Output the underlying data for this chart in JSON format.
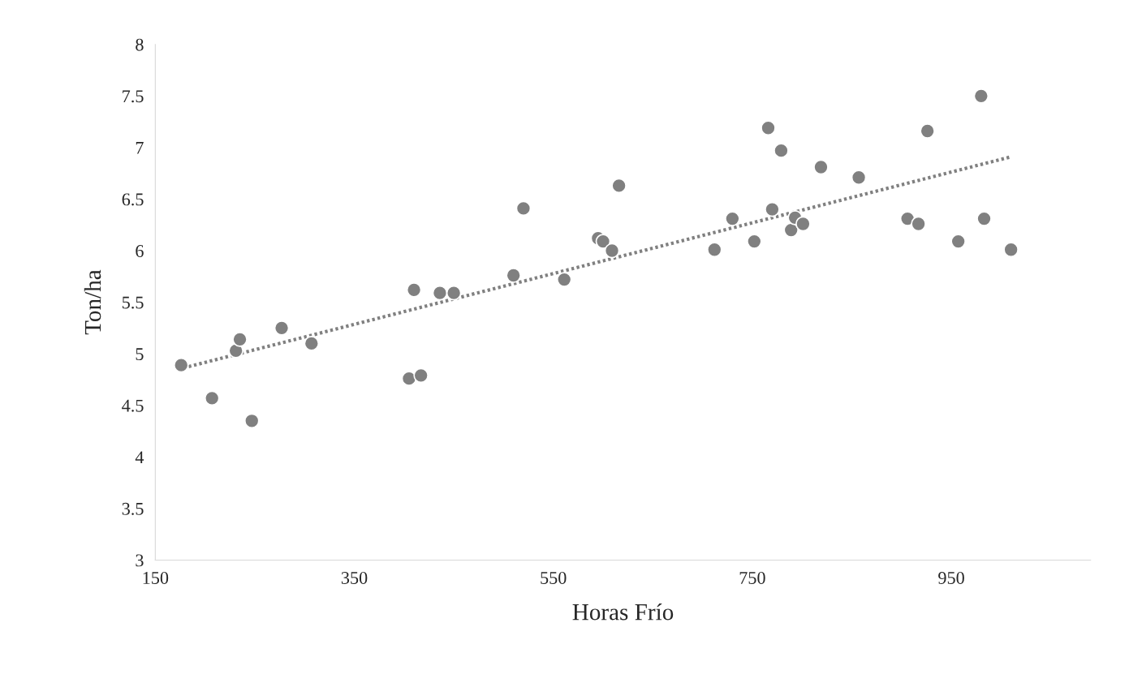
{
  "chart_data": {
    "type": "scatter",
    "xlabel": "Horas Frío",
    "ylabel": "Ton/ha",
    "xlim": [
      150,
      1090
    ],
    "xticks": [
      150,
      350,
      550,
      750,
      950
    ],
    "ylim": [
      3,
      8
    ],
    "yticks": [
      3,
      3.5,
      4,
      4.5,
      5,
      5.5,
      6,
      6.5,
      7,
      7.5,
      8
    ],
    "grid": false,
    "legend": false,
    "marker": "circle",
    "series": [
      {
        "color": "#808080",
        "x": [
          176,
          207,
          231,
          235,
          247,
          277,
          307,
          405,
          410,
          417,
          436,
          450,
          510,
          520,
          561,
          595,
          600,
          609,
          616,
          712,
          730,
          752,
          766,
          770,
          779,
          789,
          793,
          801,
          819,
          857,
          906,
          917,
          926,
          957,
          980,
          983,
          1010
        ],
        "values": [
          4.89,
          4.57,
          5.03,
          5.14,
          4.35,
          5.25,
          5.1,
          4.76,
          5.62,
          4.79,
          5.59,
          5.59,
          5.76,
          6.41,
          5.72,
          6.12,
          6.09,
          6.0,
          6.63,
          6.01,
          6.31,
          6.09,
          7.19,
          6.4,
          6.97,
          6.2,
          6.32,
          6.26,
          6.81,
          6.71,
          6.31,
          6.26,
          7.16,
          6.09,
          7.5,
          6.31,
          6.01
        ]
      },
      {
        "type": "line",
        "color": "#808080",
        "line_style": "dotted",
        "marker": "none",
        "x": [
          173,
          1010
        ],
        "values": [
          4.85,
          6.91
        ]
      }
    ]
  }
}
